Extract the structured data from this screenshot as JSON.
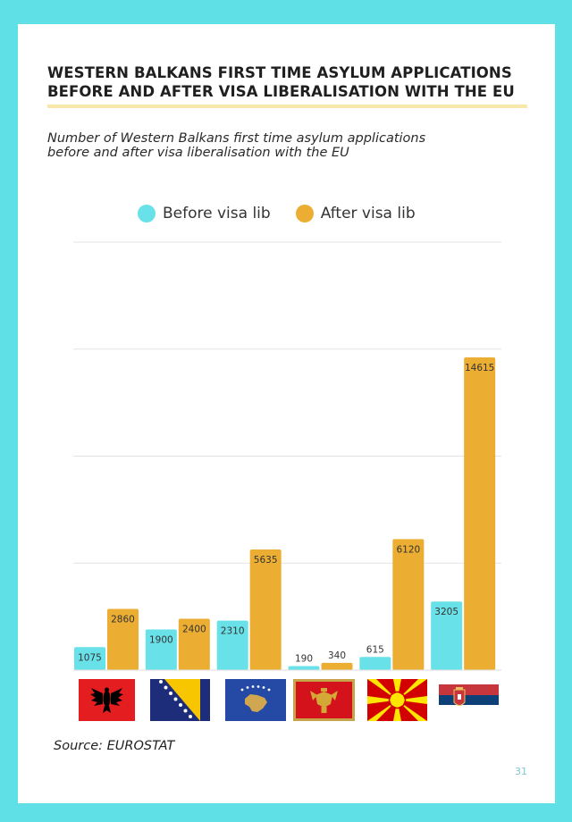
{
  "header": {
    "title_line1": "WESTERN BALKANS FIRST TIME ASYLUM APPLICATIONS",
    "title_line2": "BEFORE AND AFTER VISA LIBERALISATION WITH THE EU",
    "subtitle_line1": "Number of Western Balkans first time asylum applications",
    "subtitle_line2": "before and after visa liberalisation with the EU"
  },
  "colors": {
    "before": "#69e1e9",
    "after": "#ecae32",
    "background": "#5fe0e7"
  },
  "chart_data": {
    "type": "bar",
    "categories": [
      "Albania",
      "Bosnia and Herzegovina",
      "Kosovo",
      "Montenegro",
      "North Macedonia",
      "Serbia"
    ],
    "series": [
      {
        "name": "Before visa lib",
        "values": [
          1075,
          1900,
          2310,
          190,
          615,
          3205
        ]
      },
      {
        "name": "After visa lib",
        "values": [
          2860,
          2400,
          5635,
          340,
          6120,
          14615
        ]
      }
    ],
    "ylim": [
      0,
      20000
    ],
    "gridlines": [
      5000,
      10000,
      15000,
      20000
    ],
    "grid": true,
    "legend": "top",
    "xlabel": "",
    "ylabel": ""
  },
  "flags": [
    {
      "icon": "albania-flag-icon"
    },
    {
      "icon": "bosnia-flag-icon"
    },
    {
      "icon": "kosovo-flag-icon"
    },
    {
      "icon": "montenegro-flag-icon"
    },
    {
      "icon": "north-macedonia-flag-icon"
    },
    {
      "icon": "serbia-flag-icon"
    }
  ],
  "footer": {
    "source": "Source: EUROSTAT",
    "page_number": "31"
  }
}
